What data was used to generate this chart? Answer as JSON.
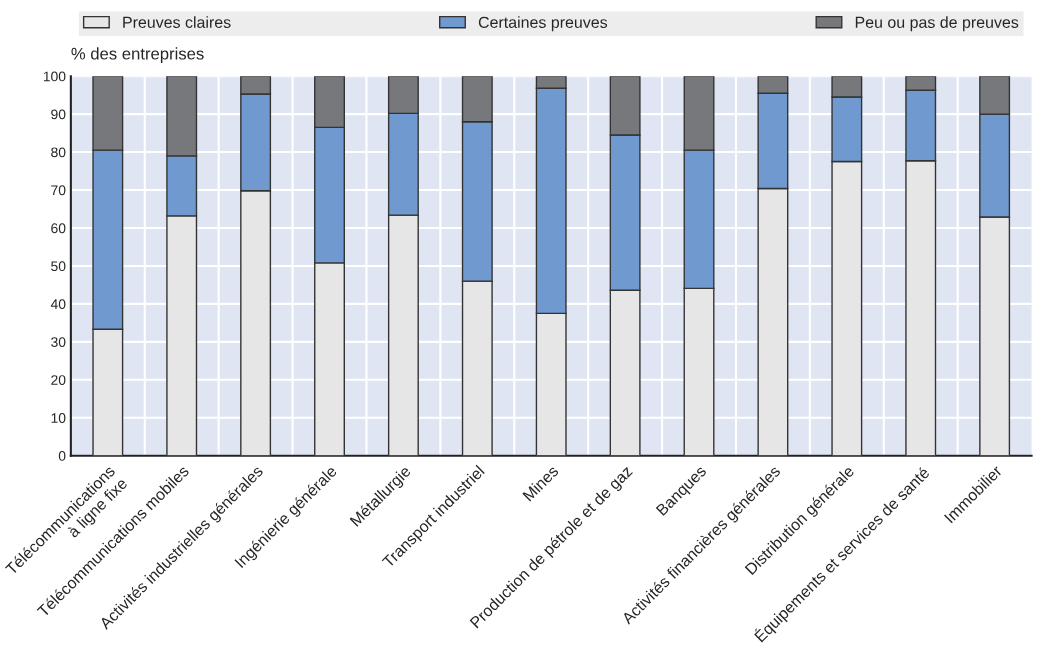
{
  "chart_data": {
    "type": "bar",
    "stacked": true,
    "ylabel": "% des entreprises",
    "categories": [
      "Télécommunications\nà ligne fixe",
      "Télécommunications mobiles",
      "Activités industrielles générales",
      "Ingénierie générale",
      "Métallurgie",
      "Transport industriel",
      "Mines",
      "Production de pétrole et de gaz",
      "Banques",
      "Activités financières générales",
      "Distribution générale",
      "Équipements et services de santé",
      "Immobilier"
    ],
    "series": [
      {
        "name": "Preuves claires",
        "color": "#e6e6e6",
        "values": [
          33.3,
          63.2,
          69.8,
          50.8,
          63.4,
          46,
          37.5,
          43.6,
          44.1,
          70.4,
          77.5,
          77.7,
          62.9
        ]
      },
      {
        "name": "Certaines preuves",
        "color": "#7099d0",
        "values": [
          47.2,
          15.8,
          25.5,
          35.7,
          26.8,
          42,
          59.3,
          40.9,
          36.4,
          25.1,
          17,
          18.6,
          27.1
        ]
      },
      {
        "name": "Peu ou pas de preuves",
        "color": "#77787b",
        "values": [
          19.5,
          21,
          4.7,
          13.5,
          9.8,
          12,
          3.2,
          15.5,
          19.5,
          4.5,
          5.5,
          3.7,
          10
        ]
      }
    ],
    "ylim": [
      0,
      100
    ],
    "yticks": [
      0,
      10,
      20,
      30,
      40,
      50,
      60,
      70,
      80,
      90,
      100
    ],
    "grid": true,
    "legend": "top"
  }
}
